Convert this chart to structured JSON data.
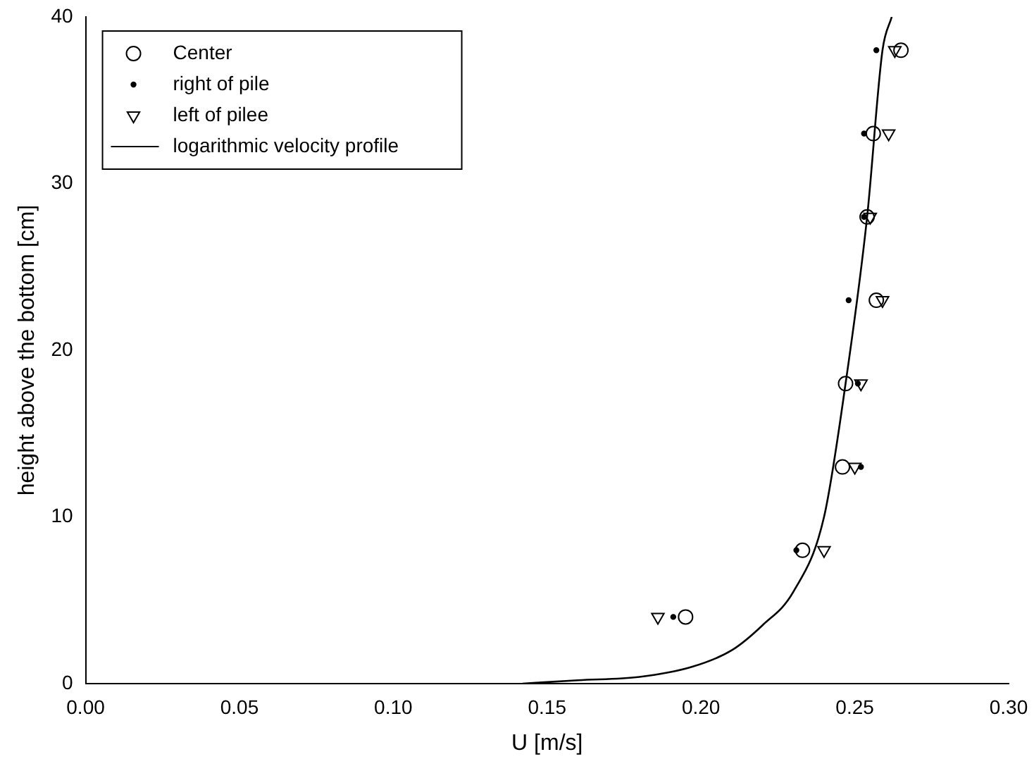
{
  "chart_data": {
    "type": "scatter",
    "xlabel": "U [m/s]",
    "ylabel": "height above the bottom [cm]",
    "xlim": [
      0,
      0.3
    ],
    "xticks": [
      {
        "value": 0,
        "label": "0.00"
      },
      {
        "value": 0.05,
        "label": "0.05"
      },
      {
        "value": 0.1,
        "label": "0.10"
      },
      {
        "value": 0.15,
        "label": "0.15"
      },
      {
        "value": 0.2,
        "label": "0.20"
      },
      {
        "value": 0.25,
        "label": "0.25"
      },
      {
        "value": 0.3,
        "label": "0.30"
      }
    ],
    "ylim": [
      0,
      40
    ],
    "yticks": [
      0,
      10,
      20,
      30,
      40
    ],
    "grid": false,
    "legend": "top left",
    "series": [
      {
        "name": "Center",
        "color": "#000000",
        "marker": "circle",
        "x": [
          0.195,
          0.233,
          0.246,
          0.247,
          0.257,
          0.254,
          0.256,
          0.265
        ],
        "values": [
          4,
          8,
          13,
          18,
          23,
          28,
          33,
          38
        ]
      },
      {
        "name": "right of pile",
        "color": "#000000",
        "marker": "dot",
        "x": [
          0.191,
          0.231,
          0.252,
          0.251,
          0.248,
          0.253,
          0.253,
          0.257
        ],
        "values": [
          4,
          8,
          13,
          18,
          23,
          28,
          33,
          38
        ]
      },
      {
        "name": "left of pilee",
        "color": "#000000",
        "marker": "triangle",
        "x": [
          0.186,
          0.24,
          0.25,
          0.252,
          0.259,
          0.255,
          0.261,
          0.263
        ],
        "values": [
          4,
          8,
          13,
          18,
          23,
          28,
          33,
          38
        ]
      },
      {
        "name": "logarithmic velocity profile",
        "type": "line",
        "color": "#000000",
        "marker": "none",
        "x": [
          0.142,
          0.16,
          0.18,
          0.197,
          0.21,
          0.22,
          0.23,
          0.24,
          0.247,
          0.254,
          0.259,
          0.262
        ],
        "values": [
          0,
          0.2,
          0.4,
          1,
          2,
          3.5,
          5.5,
          10,
          18,
          28,
          38,
          40
        ]
      }
    ]
  }
}
